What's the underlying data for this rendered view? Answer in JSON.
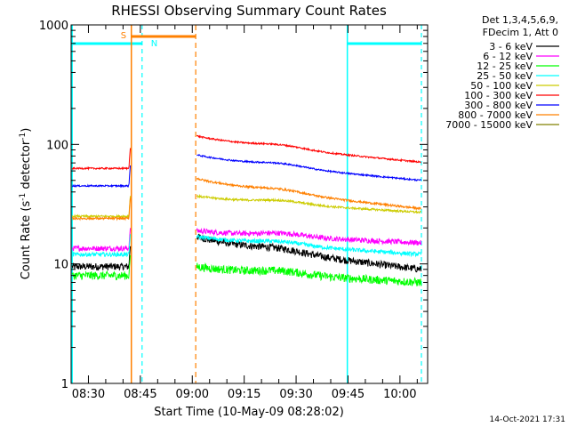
{
  "chart_data": {
    "type": "line",
    "title": "RHESSI Observing Summary Count Rates",
    "xlabel": "Start Time (10-May-09 08:28:02)",
    "ylabel_main": "Count Rate (s",
    "ylabel_sup1": "-1",
    "ylabel_mid": " detector",
    "ylabel_sup2": "-1",
    "ylabel_end": ")",
    "yscale": "log",
    "ylim": [
      1,
      1000
    ],
    "xlim_minutes": [
      505,
      608
    ],
    "x_ticks": [
      {
        "m": 510,
        "label": "08:30"
      },
      {
        "m": 525,
        "label": "08:45"
      },
      {
        "m": 540,
        "label": "09:00"
      },
      {
        "m": 555,
        "label": "09:15"
      },
      {
        "m": 570,
        "label": "09:30"
      },
      {
        "m": 585,
        "label": "09:45"
      },
      {
        "m": 600,
        "label": "10:00"
      }
    ],
    "y_ticks": [
      {
        "v": 1,
        "label": "1"
      },
      {
        "v": 10,
        "label": "10"
      },
      {
        "v": 100,
        "label": "100"
      },
      {
        "v": 1000,
        "label": "1000"
      }
    ],
    "legend_header": [
      "Det 1,3,4,5,6,9,",
      "FDecim 1, Att 0"
    ],
    "series": [
      {
        "name": "3 - 6 keV",
        "color": "#000000",
        "pre": 9.5,
        "post_start": 17,
        "post_end": 9,
        "noise": 0.07
      },
      {
        "name": "6 - 12 keV",
        "color": "#ff00ff",
        "pre": 13.5,
        "post_start": 19,
        "post_end": 15,
        "noise": 0.05
      },
      {
        "name": "12 - 25 keV",
        "color": "#00ff00",
        "pre": 8,
        "post_start": 9.5,
        "post_end": 7,
        "noise": 0.08
      },
      {
        "name": "25 - 50 keV",
        "color": "#00ffff",
        "pre": 12,
        "post_start": 17,
        "post_end": 12,
        "noise": 0.04
      },
      {
        "name": "50 - 100 keV",
        "color": "#cccc00",
        "pre": 25,
        "post_start": 37,
        "post_end": 27,
        "noise": 0.02
      },
      {
        "name": "100 - 300 keV",
        "color": "#ff0000",
        "pre": 63,
        "post_start": 118,
        "post_end": 71,
        "noise": 0.015
      },
      {
        "name": "300 - 800 keV",
        "color": "#0000ff",
        "pre": 45,
        "post_start": 82,
        "post_end": 50,
        "noise": 0.015
      },
      {
        "name": "800 - 7000 keV",
        "color": "#ff8000",
        "pre": 24,
        "post_start": 52,
        "post_end": 29,
        "noise": 0.02
      },
      {
        "name": "7000 - 15000 keV",
        "color": "#808000",
        "pre": 0,
        "post_start": 0,
        "post_end": 0,
        "noise": 0
      }
    ],
    "annotations": {
      "S": "S",
      "N": "N",
      "saa_color": "#ff8000",
      "night_color": "#00ffff",
      "saa_start_m": 522.4,
      "saa_end_m": 541.0,
      "night_periods": [
        [
          505.3,
          525.5
        ],
        [
          584.8,
          606.2
        ]
      ]
    },
    "timestamp": "14-Oct-2021 17:31"
  }
}
